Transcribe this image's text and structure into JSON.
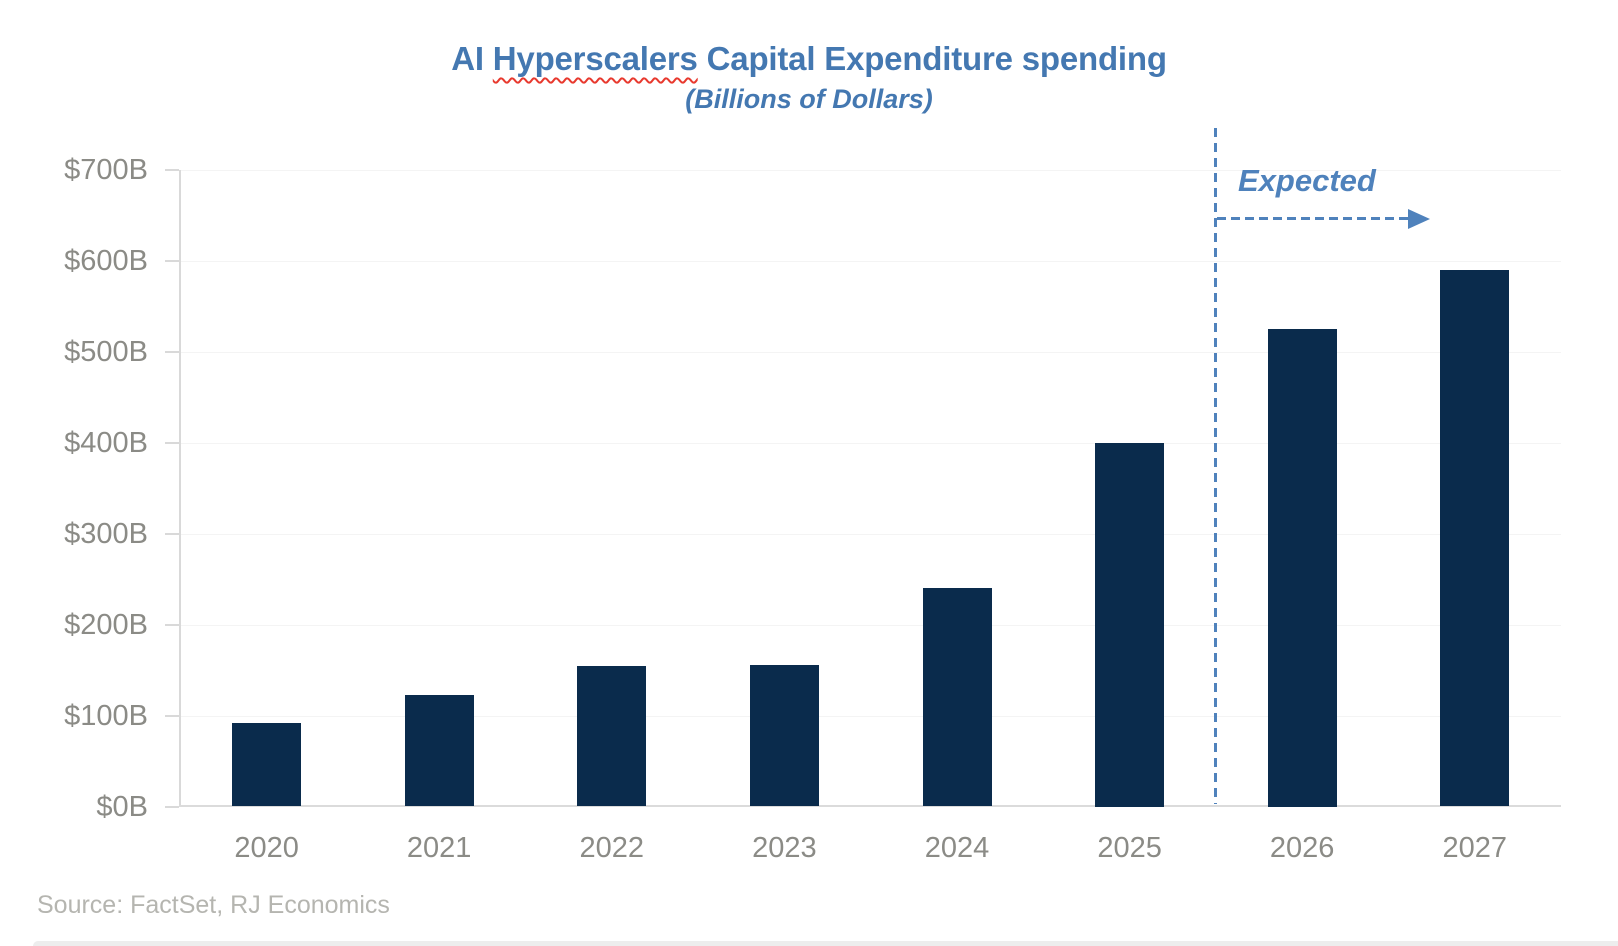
{
  "title": {
    "prefix": "AI ",
    "highlight": "Hyperscalers",
    "suffix": " Capital Expenditure spending",
    "subtitle": "(Billions of Dollars)",
    "color": "#4478b1",
    "squiggle_color": "#e8392e"
  },
  "chart_data": {
    "type": "bar",
    "title": "AI Hyperscalers Capital Expenditure spending",
    "subtitle": "(Billions of Dollars)",
    "categories": [
      "2020",
      "2021",
      "2022",
      "2023",
      "2024",
      "2025",
      "2026",
      "2027"
    ],
    "values": [
      92,
      123,
      154,
      156,
      240,
      400,
      525,
      590
    ],
    "unit": "billions of dollars",
    "xlabel": "",
    "ylabel": "",
    "ylim": [
      0,
      700
    ],
    "y_tick_step": 100,
    "y_tick_labels": [
      "$0B",
      "$100B",
      "$200B",
      "$300B",
      "$400B",
      "$500B",
      "$600B",
      "$700B"
    ],
    "grid": "faint horizontal gridlines, light gray left axis with ticks",
    "legend": "none",
    "bar_color": "#0a2b4c",
    "axis_color": "#d9d9d9",
    "label_color": "#8b8b86",
    "accent_color": "#4f82bc",
    "annotations": {
      "expected_label": "Expected",
      "divider_between": [
        "2025",
        "2026"
      ],
      "divider_style": "vertical dashed line with dashed right arrow"
    }
  },
  "source": {
    "text": "Source: FactSet, RJ Economics"
  }
}
